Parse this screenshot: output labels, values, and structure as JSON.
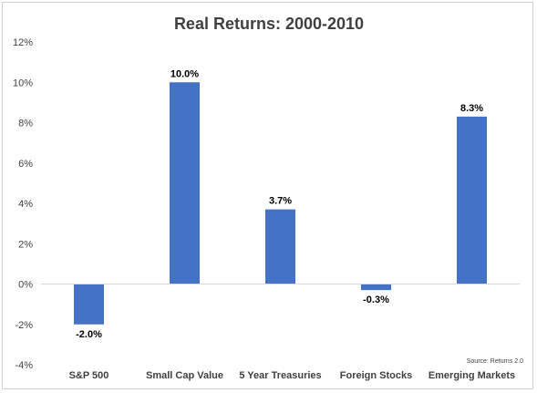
{
  "chart_data": {
    "type": "bar",
    "title": "Real Returns: 2000-2010",
    "xlabel": "",
    "ylabel": "",
    "categories": [
      "S&P 500",
      "Small Cap Value",
      "5 Year Treasuries",
      "Foreign Stocks",
      "Emerging Markets"
    ],
    "values": [
      -2.0,
      10.0,
      3.7,
      -0.3,
      8.3
    ],
    "data_labels": [
      "-2.0%",
      "10.0%",
      "3.7%",
      "-0.3%",
      "8.3%"
    ],
    "ylim": [
      -4,
      12
    ],
    "yticks": [
      12,
      10,
      8,
      6,
      4,
      2,
      0,
      -2,
      -4
    ],
    "ytick_labels": [
      "12%",
      "10%",
      "8%",
      "6%",
      "4%",
      "2%",
      "0%",
      "-2%",
      "-4%"
    ],
    "grid": false,
    "bar_color": "#4472c4",
    "source": "Source: Returns 2.0"
  }
}
